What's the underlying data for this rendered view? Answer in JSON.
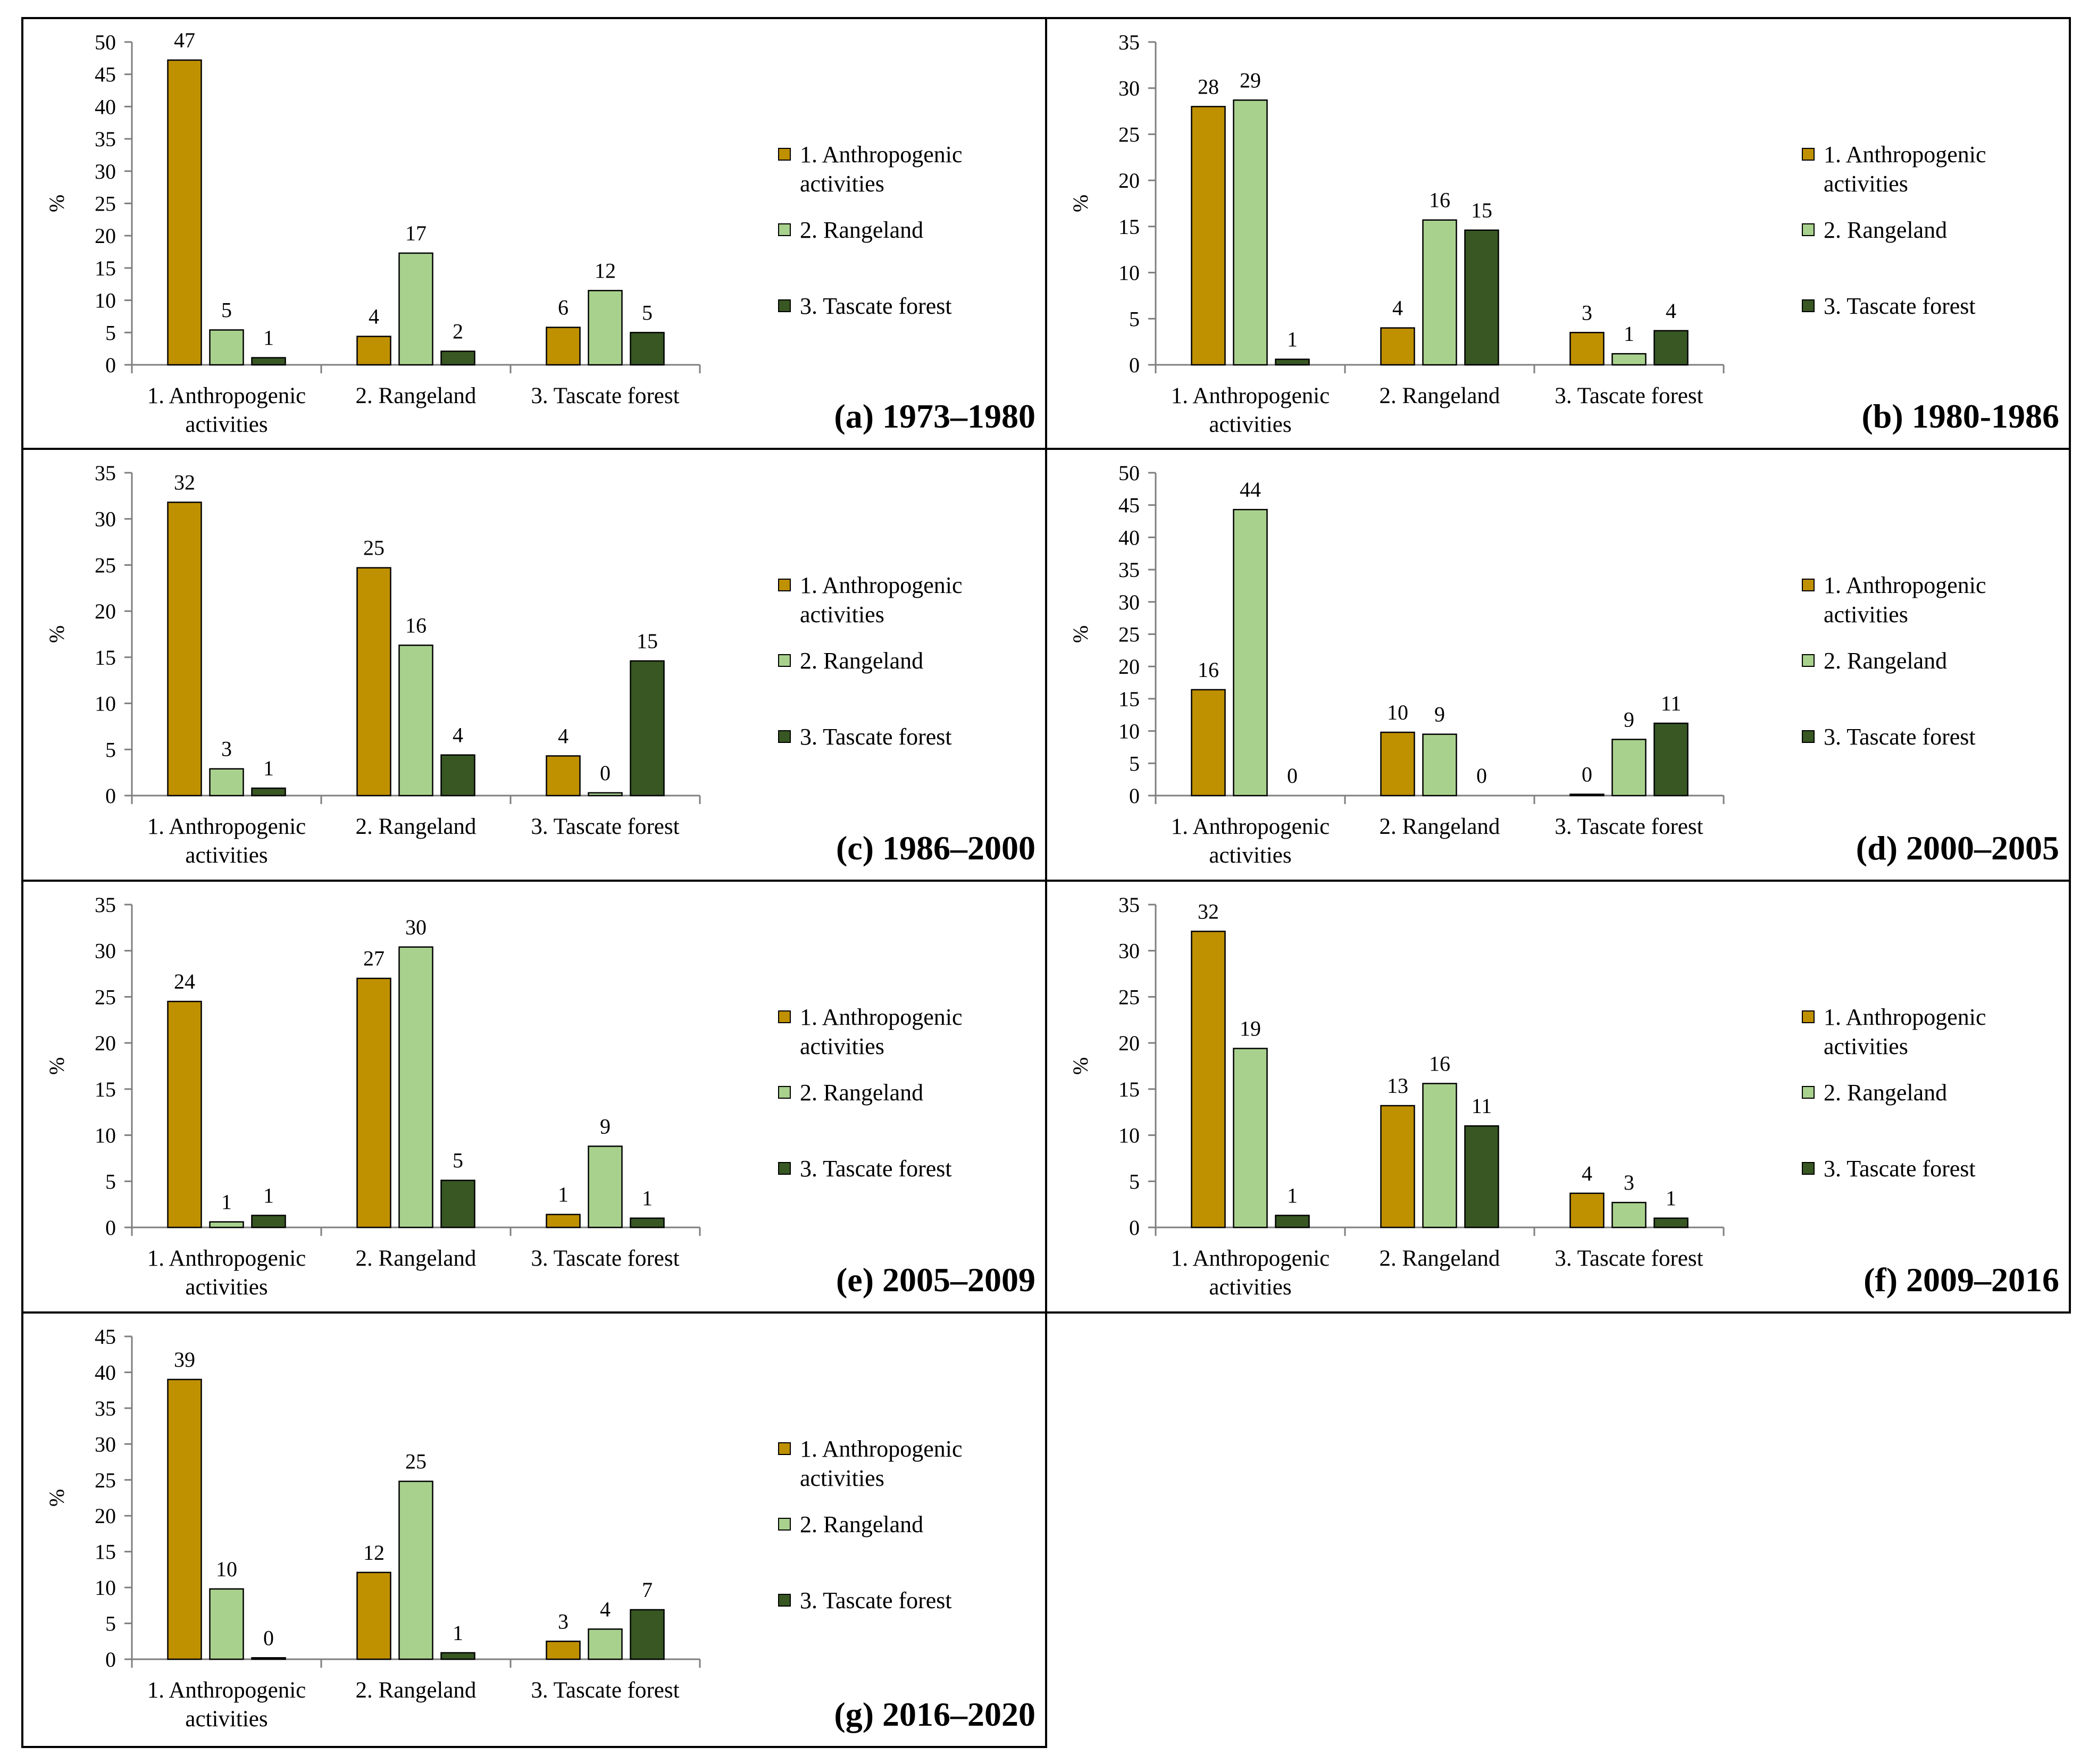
{
  "colors": {
    "anthropogenic": "#BF9000",
    "rangeland": "#A9D18E",
    "tascate": "#385723",
    "axis": "#7F7F7F",
    "frame": "#000000"
  },
  "chart_data": [
    {
      "type": "bar",
      "panel_label": "(a) 1973–1980",
      "ylabel": "%",
      "ylim": [
        0,
        50
      ],
      "yticks": [
        "0",
        "5",
        "10",
        "15",
        "20",
        "25",
        "30",
        "35",
        "40",
        "45",
        "50"
      ],
      "categories": [
        [
          "1. Anthropogenic",
          "activities"
        ],
        [
          "2. Rangeland"
        ],
        [
          "3. Tascate forest"
        ]
      ],
      "legend_position": "right",
      "series": [
        {
          "name": [
            "1. Anthropogenic",
            "activities"
          ],
          "values": [
            47.2,
            4.4,
            5.8
          ],
          "labels": [
            "47",
            "4",
            "6"
          ]
        },
        {
          "name": [
            "2. Rangeland"
          ],
          "values": [
            5.4,
            17.3,
            11.5
          ],
          "labels": [
            "5",
            "17",
            "12"
          ]
        },
        {
          "name": [
            "3. Tascate forest"
          ],
          "values": [
            1.1,
            2.1,
            5.0
          ],
          "labels": [
            "1",
            "2",
            "5"
          ]
        }
      ]
    },
    {
      "type": "bar",
      "panel_label": "(b) 1980-1986",
      "ylabel": "%",
      "ylim": [
        0,
        35
      ],
      "yticks": [
        "0",
        "5",
        "10",
        "15",
        "20",
        "25",
        "30",
        "35"
      ],
      "categories": [
        [
          "1. Anthropogenic",
          "activities"
        ],
        [
          "2. Rangeland"
        ],
        [
          "3. Tascate forest"
        ]
      ],
      "legend_position": "right",
      "series": [
        {
          "name": [
            "1. Anthropogenic",
            "activities"
          ],
          "values": [
            28.0,
            4.0,
            3.5
          ],
          "labels": [
            "28",
            "4",
            "3"
          ]
        },
        {
          "name": [
            "2. Rangeland"
          ],
          "values": [
            28.7,
            15.7,
            1.2
          ],
          "labels": [
            "29",
            "16",
            "1"
          ]
        },
        {
          "name": [
            "3. Tascate forest"
          ],
          "values": [
            0.6,
            14.6,
            3.7
          ],
          "labels": [
            "1",
            "15",
            "4"
          ]
        }
      ]
    },
    {
      "type": "bar",
      "panel_label": "(c) 1986–2000",
      "ylabel": "%",
      "ylim": [
        0,
        35
      ],
      "yticks": [
        "0",
        "5",
        "10",
        "15",
        "20",
        "25",
        "30",
        "35"
      ],
      "categories": [
        [
          "1. Anthropogenic",
          "activities"
        ],
        [
          "2. Rangeland"
        ],
        [
          "3. Tascate forest"
        ]
      ],
      "legend_position": "right",
      "series": [
        {
          "name": [
            "1. Anthropogenic",
            "activities"
          ],
          "values": [
            31.8,
            24.7,
            4.3
          ],
          "labels": [
            "32",
            "25",
            "4"
          ]
        },
        {
          "name": [
            "2. Rangeland"
          ],
          "values": [
            2.9,
            16.3,
            0.3
          ],
          "labels": [
            "3",
            "16",
            "0"
          ]
        },
        {
          "name": [
            "3. Tascate forest"
          ],
          "values": [
            0.8,
            4.4,
            14.6
          ],
          "labels": [
            "1",
            "4",
            "15"
          ]
        }
      ]
    },
    {
      "type": "bar",
      "panel_label": "(d) 2000–2005",
      "ylabel": "%",
      "ylim": [
        0,
        50
      ],
      "yticks": [
        "0",
        "5",
        "10",
        "15",
        "20",
        "25",
        "30",
        "35",
        "40",
        "45",
        "50"
      ],
      "categories": [
        [
          "1. Anthropogenic",
          "activities"
        ],
        [
          "2. Rangeland"
        ],
        [
          "3. Tascate forest"
        ]
      ],
      "legend_position": "right",
      "series": [
        {
          "name": [
            "1. Anthropogenic",
            "activities"
          ],
          "values": [
            16.4,
            9.8,
            0.2
          ],
          "labels": [
            "16",
            "10",
            "0"
          ]
        },
        {
          "name": [
            "2. Rangeland"
          ],
          "values": [
            44.3,
            9.5,
            8.7
          ],
          "labels": [
            "44",
            "9",
            "9"
          ]
        },
        {
          "name": [
            "3. Tascate forest"
          ],
          "values": [
            0.0,
            0.0,
            11.2
          ],
          "labels": [
            "0",
            "0",
            "11"
          ]
        }
      ]
    },
    {
      "type": "bar",
      "panel_label": "(e) 2005–2009",
      "ylabel": "%",
      "ylim": [
        0,
        35
      ],
      "yticks": [
        "0",
        "5",
        "10",
        "15",
        "20",
        "25",
        "30",
        "35"
      ],
      "categories": [
        [
          "1. Anthropogenic",
          "activities"
        ],
        [
          "2. Rangeland"
        ],
        [
          "3. Tascate forest"
        ]
      ],
      "legend_position": "right",
      "series": [
        {
          "name": [
            "1. Anthropogenic",
            "activities"
          ],
          "values": [
            24.5,
            27.0,
            1.4
          ],
          "labels": [
            "24",
            "27",
            "1"
          ]
        },
        {
          "name": [
            "2. Rangeland"
          ],
          "values": [
            0.6,
            30.4,
            8.8
          ],
          "labels": [
            "1",
            "30",
            "9"
          ]
        },
        {
          "name": [
            "3. Tascate forest"
          ],
          "values": [
            1.3,
            5.1,
            1.0
          ],
          "labels": [
            "1",
            "5",
            "1"
          ]
        }
      ]
    },
    {
      "type": "bar",
      "panel_label": "(f) 2009–2016",
      "ylabel": "%",
      "ylim": [
        0,
        35
      ],
      "yticks": [
        "0",
        "5",
        "10",
        "15",
        "20",
        "25",
        "30",
        "35"
      ],
      "categories": [
        [
          "1. Anthropogenic",
          "activities"
        ],
        [
          "2. Rangeland"
        ],
        [
          "3. Tascate forest"
        ]
      ],
      "legend_position": "right",
      "series": [
        {
          "name": [
            "1. Anthropogenic",
            "activities"
          ],
          "values": [
            32.1,
            13.2,
            3.7
          ],
          "labels": [
            "32",
            "13",
            "4"
          ]
        },
        {
          "name": [
            "2. Rangeland"
          ],
          "values": [
            19.4,
            15.6,
            2.7
          ],
          "labels": [
            "19",
            "16",
            "3"
          ]
        },
        {
          "name": [
            "3. Tascate forest"
          ],
          "values": [
            1.3,
            11.0,
            1.0
          ],
          "labels": [
            "1",
            "11",
            "1"
          ]
        }
      ]
    },
    {
      "type": "bar",
      "panel_label": "(g) 2016–2020",
      "ylabel": "%",
      "ylim": [
        0,
        45
      ],
      "yticks": [
        "0",
        "5",
        "10",
        "15",
        "20",
        "25",
        "30",
        "35",
        "40",
        "45"
      ],
      "categories": [
        [
          "1. Anthropogenic",
          "activities"
        ],
        [
          "2. Rangeland"
        ],
        [
          "3. Tascate forest"
        ]
      ],
      "legend_position": "right",
      "series": [
        {
          "name": [
            "1. Anthropogenic",
            "activities"
          ],
          "values": [
            39.0,
            12.1,
            2.5
          ],
          "labels": [
            "39",
            "12",
            "3"
          ]
        },
        {
          "name": [
            "2. Rangeland"
          ],
          "values": [
            9.8,
            24.8,
            4.2
          ],
          "labels": [
            "10",
            "25",
            "4"
          ]
        },
        {
          "name": [
            "3. Tascate forest"
          ],
          "values": [
            0.2,
            0.9,
            6.9
          ],
          "labels": [
            "0",
            "1",
            "7"
          ]
        }
      ]
    }
  ]
}
